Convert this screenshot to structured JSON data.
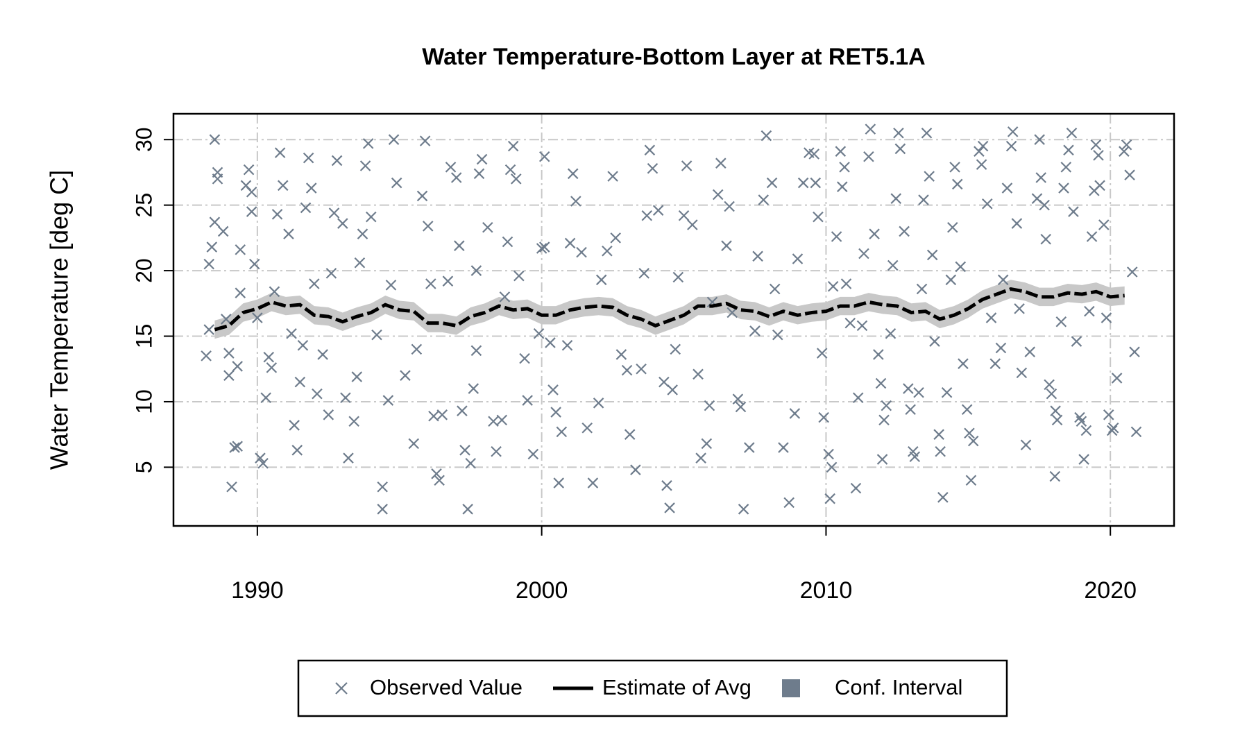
{
  "chart_data": {
    "type": "scatter",
    "title": "Water Temperature-Bottom Layer at RET5.1A",
    "ylabel": "Water Temperature [deg C]",
    "xlim": [
      1987.05,
      2022.24
    ],
    "ylim": [
      0.52,
      31.97
    ],
    "xticks": [
      1990,
      2000,
      2010,
      2020
    ],
    "yticks": [
      5,
      10,
      15,
      20,
      25,
      30
    ],
    "grid": true,
    "legend": "bottom",
    "series": [
      {
        "name": "Observed Value",
        "type": "scatter",
        "marker": "x",
        "color": "#6e7c8c",
        "x": [
          1988.2,
          1988.3,
          1988.3,
          1988.4,
          1988.5,
          1988.5,
          1988.6,
          1988.6,
          1988.8,
          1988.9,
          1989.0,
          1989.0,
          1989.1,
          1989.2,
          1989.3,
          1989.3,
          1989.4,
          1989.4,
          1989.6,
          1989.7,
          1989.8,
          1989.8,
          1989.9,
          1990.0,
          1990.1,
          1990.2,
          1990.3,
          1990.4,
          1990.5,
          1990.6,
          1990.7,
          1990.8,
          1990.9,
          1991.1,
          1991.2,
          1991.3,
          1991.4,
          1991.5,
          1991.6,
          1991.7,
          1991.8,
          1991.9,
          1992.0,
          1992.1,
          1992.3,
          1992.5,
          1992.6,
          1992.7,
          1992.8,
          1993.0,
          1993.1,
          1993.2,
          1993.4,
          1993.5,
          1993.6,
          1993.7,
          1993.8,
          1993.9,
          1994.0,
          1994.2,
          1994.4,
          1994.4,
          1994.6,
          1994.7,
          1994.9,
          1994.8,
          1995.2,
          1995.5,
          1995.6,
          1995.8,
          1995.9,
          1996.0,
          1996.1,
          1996.2,
          1996.3,
          1996.4,
          1996.5,
          1996.7,
          1996.8,
          1997.0,
          1997.1,
          1997.2,
          1997.3,
          1997.4,
          1997.5,
          1997.6,
          1997.7,
          1997.7,
          1997.8,
          1997.9,
          1998.1,
          1998.3,
          1998.4,
          1998.6,
          1998.7,
          1998.8,
          1998.9,
          1999.0,
          1999.1,
          1999.2,
          1999.4,
          1999.5,
          1999.7,
          1999.9,
          2000.0,
          2000.1,
          2000.1,
          2000.3,
          2000.4,
          2000.5,
          2000.6,
          2000.7,
          2000.9,
          2001.0,
          2001.1,
          2001.2,
          2001.4,
          2001.6,
          2001.8,
          2002.0,
          2002.1,
          2002.3,
          2002.5,
          2002.6,
          2002.8,
          2003.0,
          2003.1,
          2003.3,
          2003.5,
          2003.6,
          2003.7,
          2003.8,
          2003.9,
          2004.1,
          2004.3,
          2004.4,
          2004.5,
          2004.6,
          2004.7,
          2004.8,
          2005.0,
          2005.1,
          2005.3,
          2005.5,
          2005.6,
          2005.8,
          2005.9,
          2006.0,
          2006.2,
          2006.3,
          2006.5,
          2006.6,
          2006.7,
          2006.9,
          2007.0,
          2007.1,
          2007.3,
          2007.5,
          2007.6,
          2007.8,
          2007.9,
          2008.1,
          2008.2,
          2008.3,
          2008.5,
          2008.7,
          2008.9,
          2009.0,
          2009.2,
          2009.4,
          2009.58,
          2009.63,
          2009.72,
          2009.86,
          2009.92,
          2010.09,
          2010.14,
          2010.2,
          2010.25,
          2010.37,
          2010.51,
          2010.57,
          2010.65,
          2010.71,
          2010.85,
          2011.05,
          2011.13,
          2011.27,
          2011.33,
          2011.5,
          2011.56,
          2011.7,
          2011.84,
          2011.93,
          2011.98,
          2012.04,
          2012.12,
          2012.27,
          2012.35,
          2012.46,
          2012.55,
          2012.61,
          2012.75,
          2012.89,
          2012.97,
          2013.06,
          2013.12,
          2013.26,
          2013.37,
          2013.43,
          2013.54,
          2013.63,
          2013.74,
          2013.82,
          2013.97,
          2014.02,
          2014.11,
          2014.25,
          2014.39,
          2014.45,
          2014.53,
          2014.62,
          2014.73,
          2014.82,
          2014.96,
          2015.04,
          2015.1,
          2015.18,
          2015.38,
          2015.47,
          2015.52,
          2015.67,
          2015.81,
          2015.95,
          2016.15,
          2016.23,
          2016.37,
          2016.52,
          2016.57,
          2016.71,
          2016.8,
          2016.88,
          2017.03,
          2017.17,
          2017.42,
          2017.51,
          2017.56,
          2017.68,
          2017.73,
          2017.85,
          2017.93,
          2018.07,
          2018.13,
          2018.05,
          2018.27,
          2018.36,
          2018.44,
          2018.53,
          2018.64,
          2018.7,
          2018.81,
          2018.92,
          2018.98,
          2019.07,
          2019.15,
          2019.26,
          2019.35,
          2019.43,
          2019.49,
          2019.58,
          2019.63,
          2019.77,
          2019.86,
          2019.94,
          2020.06,
          2020.11,
          2020.23,
          2020.48,
          2020.57,
          2020.68,
          2020.77,
          2020.85,
          2020.91
        ],
        "values": [
          13.5,
          20.5,
          15.5,
          21.8,
          23.7,
          30.0,
          27.5,
          27.0,
          23.0,
          16.3,
          13.7,
          12.0,
          3.5,
          6.5,
          6.6,
          12.7,
          18.3,
          21.6,
          26.5,
          27.7,
          26.0,
          24.5,
          20.5,
          16.4,
          5.7,
          5.3,
          10.3,
          13.4,
          12.6,
          18.4,
          24.3,
          29.0,
          26.5,
          22.8,
          15.2,
          8.2,
          6.3,
          11.5,
          14.3,
          24.8,
          28.6,
          26.3,
          19.0,
          10.6,
          13.6,
          9.0,
          19.8,
          24.4,
          28.4,
          23.6,
          10.3,
          5.7,
          8.5,
          11.9,
          20.6,
          22.8,
          28.0,
          29.7,
          24.1,
          15.1,
          3.5,
          1.8,
          10.1,
          18.9,
          26.7,
          30.0,
          12.0,
          6.8,
          14.0,
          25.7,
          29.9,
          23.4,
          19.0,
          8.9,
          4.5,
          4.0,
          9.0,
          19.2,
          27.9,
          27.1,
          21.9,
          9.3,
          6.3,
          1.8,
          5.3,
          11.0,
          13.9,
          20.0,
          27.4,
          28.5,
          23.3,
          8.5,
          6.2,
          8.6,
          18.0,
          22.2,
          27.7,
          29.5,
          27.0,
          19.6,
          13.3,
          10.1,
          6.0,
          15.2,
          21.7,
          28.7,
          21.8,
          14.5,
          10.9,
          9.2,
          3.8,
          7.7,
          14.3,
          22.1,
          27.4,
          25.3,
          21.4,
          8.0,
          3.8,
          9.9,
          19.3,
          21.5,
          27.2,
          22.5,
          13.6,
          12.4,
          7.5,
          4.8,
          12.5,
          19.8,
          24.2,
          29.2,
          27.8,
          24.6,
          11.5,
          3.6,
          1.9,
          10.9,
          14.0,
          19.5,
          24.2,
          28.0,
          23.5,
          12.1,
          5.7,
          6.8,
          9.7,
          17.6,
          25.8,
          28.2,
          21.9,
          24.9,
          16.8,
          10.2,
          9.6,
          1.8,
          6.5,
          15.4,
          21.1,
          25.4,
          30.3,
          26.7,
          18.6,
          15.1,
          6.5,
          2.3,
          9.1,
          20.9,
          26.7,
          29.0,
          28.9,
          26.7,
          24.1,
          13.7,
          8.8,
          6.0,
          2.6,
          5.0,
          18.8,
          22.6,
          29.1,
          26.4,
          27.9,
          19.0,
          16.0,
          3.4,
          10.3,
          15.8,
          21.3,
          28.7,
          30.8,
          22.8,
          13.6,
          11.4,
          5.6,
          8.6,
          9.7,
          15.2,
          20.4,
          25.5,
          30.5,
          29.3,
          23.0,
          11.0,
          9.4,
          6.2,
          5.8,
          10.7,
          18.6,
          25.4,
          30.5,
          27.2,
          21.2,
          14.6,
          7.5,
          6.2,
          2.7,
          10.7,
          19.3,
          23.3,
          27.9,
          26.6,
          20.3,
          12.9,
          9.4,
          7.6,
          4.0,
          7.0,
          29.1,
          28.1,
          29.5,
          25.1,
          16.4,
          12.9,
          14.1,
          19.3,
          26.3,
          29.5,
          30.6,
          23.6,
          17.1,
          12.2,
          6.7,
          13.8,
          25.5,
          30.0,
          27.1,
          25.0,
          22.4,
          11.3,
          10.6,
          9.3,
          8.6,
          4.3,
          16.1,
          26.3,
          27.9,
          29.2,
          30.5,
          24.5,
          14.6,
          8.8,
          8.5,
          5.6,
          7.8,
          16.9,
          22.6,
          26.1,
          29.6,
          28.8,
          26.5,
          23.5,
          16.4,
          9.0,
          7.8,
          8.0,
          11.8,
          29.1,
          29.6,
          27.3,
          19.9,
          13.8,
          7.7
        ]
      },
      {
        "name": "Estimate of Avg",
        "type": "line",
        "color": "#000000",
        "dashed": true,
        "x": [
          1988.5,
          1989,
          1989.5,
          1990,
          1990.5,
          1991,
          1991.5,
          1992,
          1992.5,
          1993,
          1993.5,
          1994,
          1994.5,
          1995,
          1995.5,
          1996,
          1996.5,
          1997,
          1997.5,
          1998,
          1998.5,
          1999,
          1999.5,
          2000,
          2000.5,
          2001,
          2001.5,
          2002,
          2002.5,
          2003,
          2003.5,
          2004,
          2004.5,
          2005,
          2005.5,
          2006,
          2006.5,
          2007,
          2007.5,
          2008,
          2008.5,
          2009,
          2009.5,
          2010,
          2010.5,
          2011,
          2011.5,
          2012,
          2012.5,
          2013,
          2013.5,
          2014,
          2014.5,
          2015,
          2015.5,
          2016,
          2016.5,
          2017,
          2017.5,
          2018,
          2018.5,
          2019,
          2019.5,
          2020,
          2020.5
        ],
        "values": [
          15.5,
          15.8,
          16.8,
          17.1,
          17.6,
          17.3,
          17.4,
          16.6,
          16.5,
          16.1,
          16.5,
          16.8,
          17.4,
          17.0,
          16.9,
          16.0,
          16.0,
          15.8,
          16.5,
          16.8,
          17.3,
          17.0,
          17.1,
          16.6,
          16.6,
          17.0,
          17.2,
          17.3,
          17.2,
          16.6,
          16.3,
          15.8,
          16.2,
          16.6,
          17.3,
          17.3,
          17.5,
          17.0,
          16.9,
          16.5,
          16.9,
          16.6,
          16.8,
          16.9,
          17.3,
          17.3,
          17.6,
          17.4,
          17.3,
          16.8,
          16.9,
          16.3,
          16.6,
          17.1,
          17.8,
          18.2,
          18.6,
          18.4,
          18.0,
          18.0,
          18.3,
          18.2,
          18.4,
          18.0,
          18.1
        ]
      },
      {
        "name": "Conf. Interval",
        "type": "band",
        "color": "#c8c8c8",
        "legend_color": "#6e7c8c",
        "x": [
          1988.5,
          1989,
          1989.5,
          1990,
          1990.5,
          1991,
          1991.5,
          1992,
          1992.5,
          1993,
          1993.5,
          1994,
          1994.5,
          1995,
          1995.5,
          1996,
          1996.5,
          1997,
          1997.5,
          1998,
          1998.5,
          1999,
          1999.5,
          2000,
          2000.5,
          2001,
          2001.5,
          2002,
          2002.5,
          2003,
          2003.5,
          2004,
          2004.5,
          2005,
          2005.5,
          2006,
          2006.5,
          2007,
          2007.5,
          2008,
          2008.5,
          2009,
          2009.5,
          2010,
          2010.5,
          2011,
          2011.5,
          2012,
          2012.5,
          2013,
          2013.5,
          2014,
          2014.5,
          2015,
          2015.5,
          2016,
          2016.5,
          2017,
          2017.5,
          2018,
          2018.5,
          2019,
          2019.5,
          2020,
          2020.5
        ],
        "lower": [
          14.8,
          15.1,
          16.1,
          16.4,
          16.9,
          16.6,
          16.7,
          15.9,
          15.8,
          15.4,
          15.8,
          16.1,
          16.7,
          16.3,
          16.2,
          15.3,
          15.3,
          15.1,
          15.8,
          16.1,
          16.6,
          16.3,
          16.4,
          15.9,
          15.9,
          16.3,
          16.5,
          16.6,
          16.5,
          15.9,
          15.6,
          15.1,
          15.5,
          15.9,
          16.6,
          16.6,
          16.8,
          16.3,
          16.2,
          15.8,
          16.2,
          15.9,
          16.1,
          16.2,
          16.6,
          16.6,
          16.9,
          16.7,
          16.6,
          16.1,
          16.2,
          15.6,
          15.9,
          16.4,
          17.1,
          17.5,
          17.9,
          17.7,
          17.3,
          17.3,
          17.6,
          17.5,
          17.7,
          17.3,
          17.4
        ],
        "upper": [
          16.2,
          16.5,
          17.5,
          17.8,
          18.3,
          18.0,
          18.1,
          17.3,
          17.2,
          16.8,
          17.2,
          17.5,
          18.1,
          17.7,
          17.6,
          16.7,
          16.7,
          16.5,
          17.2,
          17.5,
          18.0,
          17.7,
          17.8,
          17.3,
          17.3,
          17.7,
          17.9,
          18.0,
          17.9,
          17.3,
          17.0,
          16.5,
          16.9,
          17.3,
          18.0,
          18.0,
          18.2,
          17.7,
          17.6,
          17.2,
          17.6,
          17.3,
          17.5,
          17.6,
          18.0,
          18.0,
          18.3,
          18.1,
          18.0,
          17.5,
          17.6,
          17.0,
          17.3,
          17.8,
          18.5,
          18.9,
          19.3,
          19.1,
          18.7,
          18.7,
          19.0,
          18.9,
          19.1,
          18.7,
          18.8
        ]
      }
    ]
  }
}
